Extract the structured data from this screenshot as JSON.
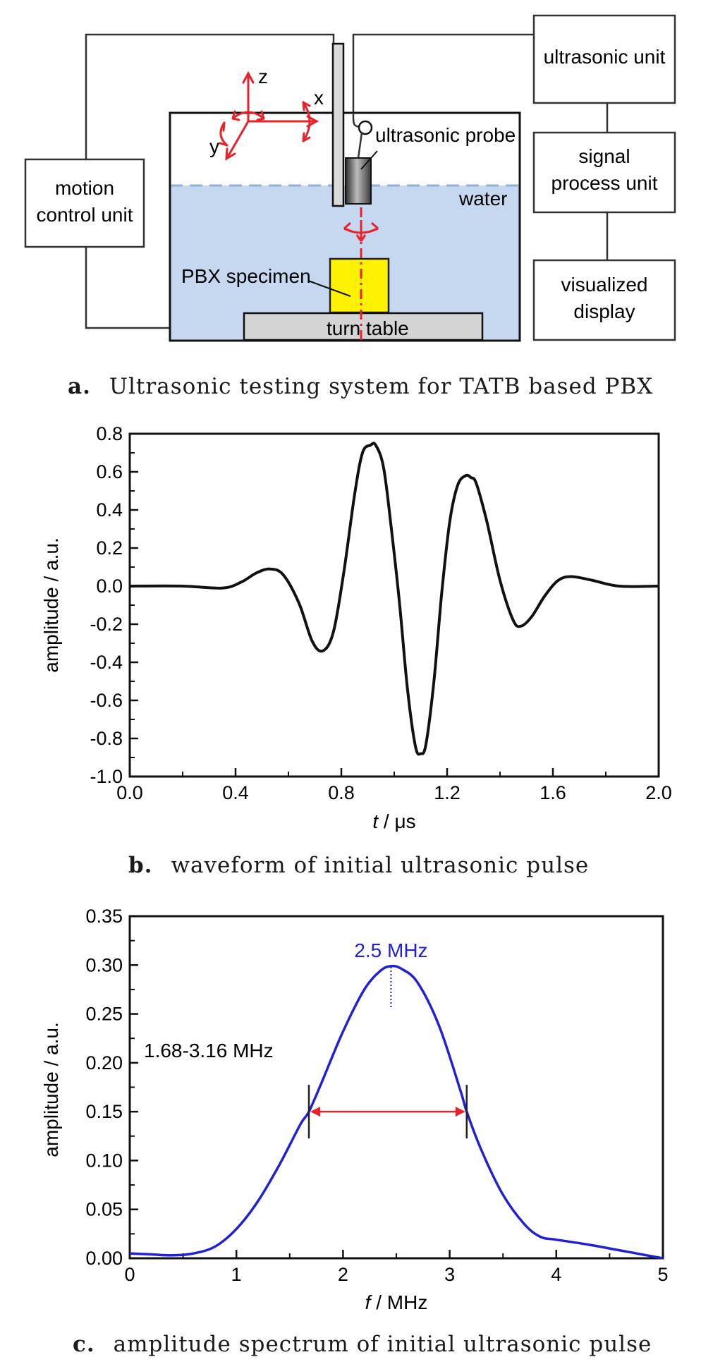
{
  "panel_a": {
    "boxes": {
      "motion_control": [
        "motion",
        "control unit"
      ],
      "ultrasonic_unit": "ultrasonic unit",
      "signal_process": [
        "signal",
        "process unit"
      ],
      "visualized_display": [
        "visualized",
        "display"
      ]
    },
    "labels": {
      "probe": "ultrasonic probe",
      "water": "water",
      "specimen": "PBX specimen",
      "turn_table": "turn table",
      "axis_z": "z",
      "axis_x": "x",
      "axis_y": "y"
    },
    "caption_letter": "a.",
    "caption_text": "Ultrasonic testing system for TATB based PBX",
    "colors": {
      "water": "#c5d8ef",
      "specimen": "#fff200",
      "arrows": "#e8222a",
      "table": "#d4d4d4"
    }
  },
  "panel_b": {
    "caption_letter": "b.",
    "caption_text": "waveform of initial ultrasonic pulse"
  },
  "panel_c": {
    "caption_letter": "c.",
    "caption_text": "amplitude spectrum of initial ultrasonic pulse"
  },
  "chart_data": [
    {
      "type": "line",
      "xlabel_var": "t",
      "xlabel_unit": " / μs",
      "ylabel": "amplitude / a.u.",
      "xlim": [
        0.0,
        2.0
      ],
      "ylim": [
        -1.0,
        0.8
      ],
      "x_ticks": [
        "0.0",
        "0.4",
        "0.8",
        "1.2",
        "1.6",
        "2.0"
      ],
      "y_ticks": [
        "-1.0",
        "-0.8",
        "-0.6",
        "-0.4",
        "-0.2",
        "0.0",
        "0.2",
        "0.4",
        "0.6",
        "0.8"
      ],
      "series": [
        {
          "color": "#111111",
          "x": [
            0.0,
            0.2,
            0.35,
            0.42,
            0.48,
            0.53,
            0.58,
            0.64,
            0.69,
            0.73,
            0.77,
            0.81,
            0.85,
            0.88,
            0.91,
            0.93,
            0.96,
            0.99,
            1.02,
            1.05,
            1.08,
            1.1,
            1.12,
            1.15,
            1.18,
            1.21,
            1.24,
            1.27,
            1.29,
            1.31,
            1.35,
            1.4,
            1.45,
            1.48,
            1.52,
            1.57,
            1.62,
            1.67,
            1.75,
            1.85,
            2.0
          ],
          "y": [
            0.0,
            0.0,
            -0.01,
            0.02,
            0.07,
            0.09,
            0.06,
            -0.09,
            -0.29,
            -0.34,
            -0.24,
            0.08,
            0.48,
            0.7,
            0.74,
            0.74,
            0.62,
            0.29,
            -0.09,
            -0.54,
            -0.84,
            -0.88,
            -0.83,
            -0.5,
            -0.03,
            0.34,
            0.53,
            0.58,
            0.57,
            0.54,
            0.34,
            0.03,
            -0.18,
            -0.21,
            -0.16,
            -0.05,
            0.03,
            0.05,
            0.03,
            0.0,
            0.0
          ]
        }
      ]
    },
    {
      "type": "line",
      "xlabel_var": "f",
      "xlabel_unit": " / MHz",
      "ylabel": "amplitude / a.u.",
      "xlim": [
        0,
        5
      ],
      "ylim": [
        0.0,
        0.35
      ],
      "x_ticks": [
        "0",
        "1",
        "2",
        "3",
        "4",
        "5"
      ],
      "y_ticks": [
        "0.00",
        "0.05",
        "0.10",
        "0.15",
        "0.20",
        "0.25",
        "0.30",
        "0.35"
      ],
      "series": [
        {
          "color": "#2020d8",
          "x": [
            0.0,
            0.2,
            0.4,
            0.6,
            0.8,
            1.0,
            1.2,
            1.4,
            1.6,
            1.68,
            1.8,
            2.0,
            2.2,
            2.35,
            2.45,
            2.55,
            2.7,
            2.9,
            3.1,
            3.16,
            3.3,
            3.5,
            3.7,
            3.85,
            4.0,
            4.3,
            4.6,
            4.8,
            5.0
          ],
          "y": [
            0.005,
            0.004,
            0.003,
            0.005,
            0.012,
            0.03,
            0.058,
            0.095,
            0.137,
            0.15,
            0.18,
            0.232,
            0.275,
            0.294,
            0.299,
            0.296,
            0.282,
            0.238,
            0.172,
            0.15,
            0.11,
            0.065,
            0.035,
            0.022,
            0.019,
            0.014,
            0.008,
            0.004,
            0.0
          ]
        }
      ],
      "annotations": {
        "peak_label": "2.5 MHz",
        "peak_x": 2.45,
        "band_label": "1.68-3.16 MHz",
        "band": [
          1.68,
          3.16
        ],
        "band_y": 0.15
      }
    }
  ]
}
